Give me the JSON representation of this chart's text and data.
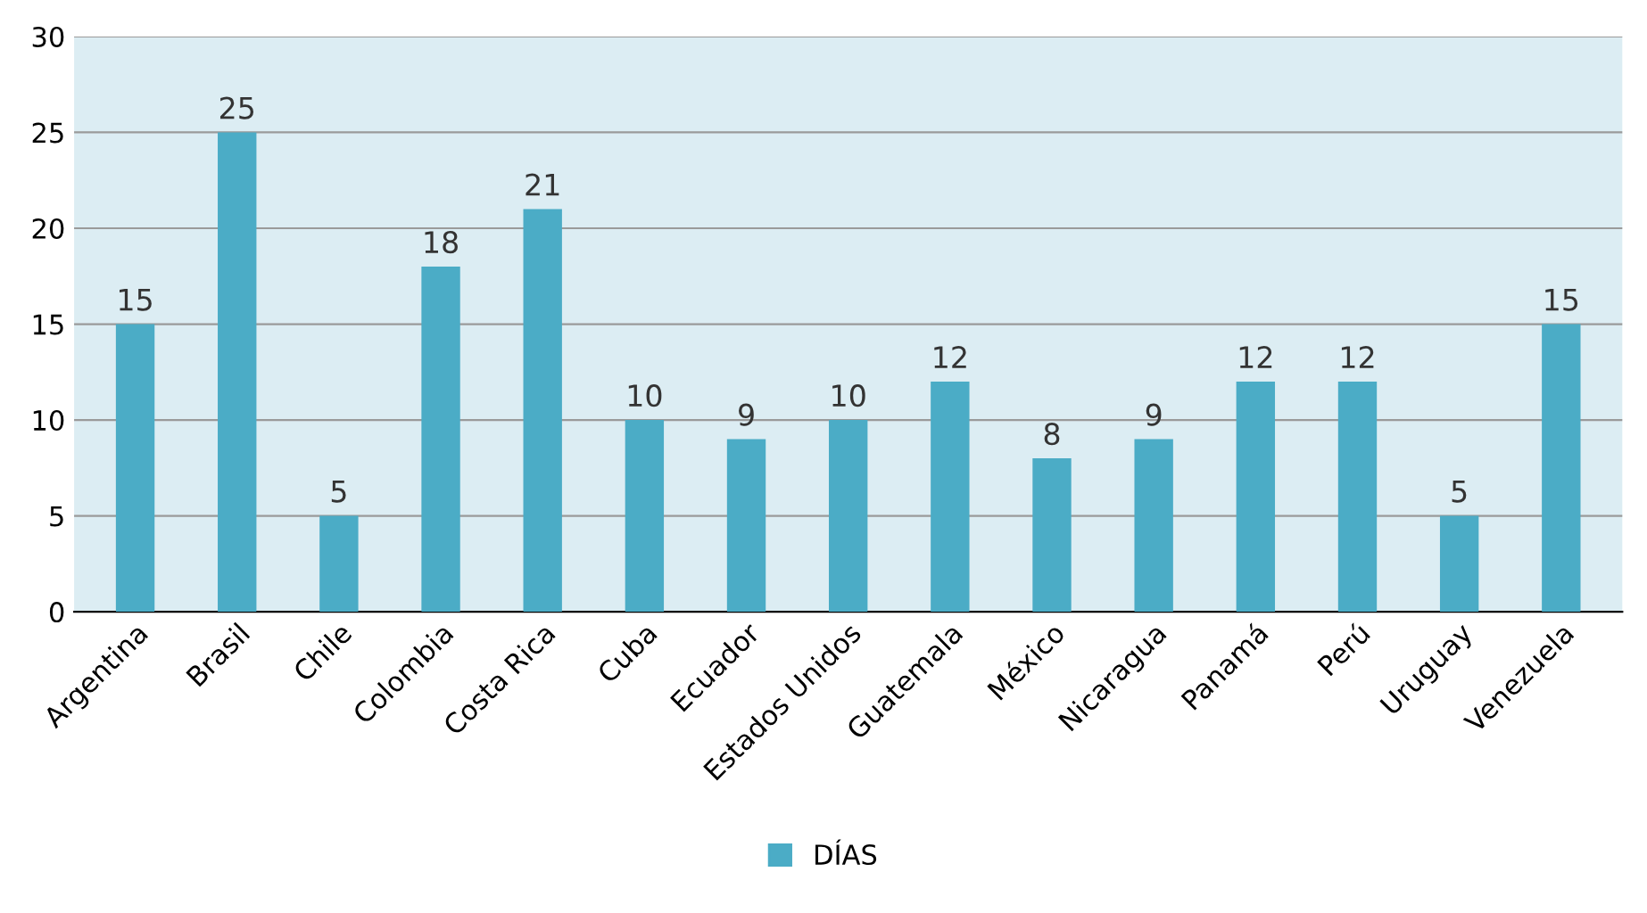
{
  "chart_data": {
    "type": "bar",
    "categories": [
      "Argentina",
      "Brasil",
      "Chile",
      "Colombia",
      "Costa Rica",
      "Cuba",
      "Ecuador",
      "Estados Unidos",
      "Guatemala",
      "México",
      "Nicaragua",
      "Panamá",
      "Perú",
      "Uruguay",
      "Venezuela"
    ],
    "series": [
      {
        "name": "DÍAS",
        "color": "#4bacc6",
        "values": [
          15,
          25,
          5,
          18,
          21,
          10,
          9,
          10,
          12,
          8,
          9,
          12,
          12,
          5,
          15
        ]
      }
    ],
    "ylim": [
      0,
      30
    ],
    "yticks": [
      0,
      5,
      10,
      15,
      20,
      25,
      30
    ],
    "grid": "y",
    "legend": "bottom",
    "data_labels": true
  }
}
